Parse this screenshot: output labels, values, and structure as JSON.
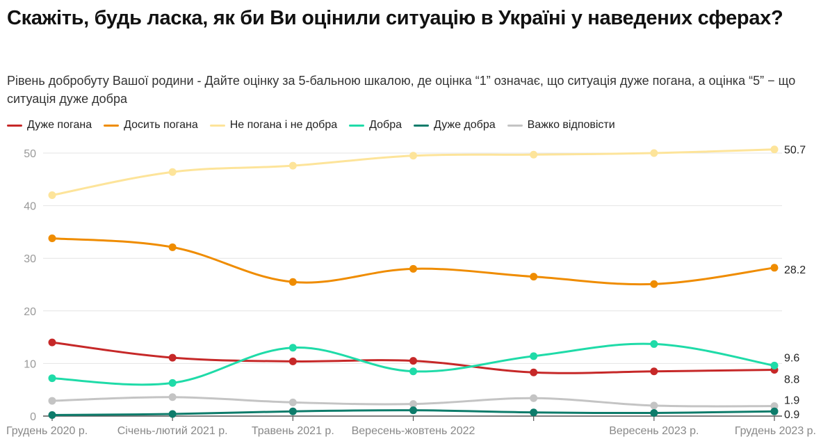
{
  "chart_data": {
    "type": "line",
    "title": "Скажіть, будь ласка, як би Ви оцінили ситуацію в Україні у наведених сферах?",
    "subtitle": "Рівень добробуту Вашої родини - Дайте оцінку за 5-бальною шкалою, де оцінка “1” означає, що ситуація дуже погана, а оцінка “5” − що ситуація дуже добра",
    "x": [
      "Грудень 2020 р.",
      "Січень-лютий 2021 р.",
      "Травень 2021 р.",
      "Вересень-жовтень 2022",
      "",
      "Вересень 2023 р.",
      "Грудень 2023 р."
    ],
    "ylim": [
      0,
      52
    ],
    "yticks": [
      0,
      10,
      20,
      30,
      40,
      50
    ],
    "grid": true,
    "legend": "top-left",
    "series": [
      {
        "name": "Дуже погана",
        "color": "#c62828",
        "values": [
          14.0,
          11.1,
          10.4,
          10.5,
          8.3,
          8.5,
          8.8
        ],
        "end_label": "8.8"
      },
      {
        "name": "Досить погана",
        "color": "#ef8c00",
        "values": [
          33.8,
          32.1,
          25.5,
          28.0,
          26.5,
          25.1,
          28.2
        ],
        "end_label": "28.2"
      },
      {
        "name": "Не погана і не добра",
        "color": "#fde49a",
        "values": [
          42.0,
          46.4,
          47.6,
          49.5,
          49.7,
          50.0,
          50.7
        ],
        "end_label": "50.7"
      },
      {
        "name": "Добра",
        "color": "#1fdba8",
        "values": [
          7.2,
          6.3,
          13.0,
          8.5,
          11.4,
          13.7,
          9.6
        ],
        "end_label": "9.6"
      },
      {
        "name": "Дуже добра",
        "color": "#0e7c6b",
        "values": [
          0.2,
          0.4,
          0.9,
          1.1,
          0.7,
          0.6,
          0.9
        ],
        "end_label": "0.9"
      },
      {
        "name": "Важко відповісти",
        "color": "#c4c4c4",
        "values": [
          2.9,
          3.6,
          2.6,
          2.3,
          3.4,
          2.0,
          1.9
        ],
        "end_label": "1.9"
      }
    ]
  }
}
